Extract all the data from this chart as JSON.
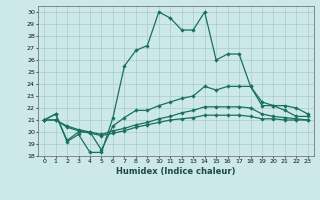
{
  "xlabel": "Humidex (Indice chaleur)",
  "x": [
    0,
    1,
    2,
    3,
    4,
    5,
    6,
    7,
    8,
    9,
    10,
    11,
    12,
    13,
    14,
    15,
    16,
    17,
    18,
    19,
    20,
    21,
    22,
    23
  ],
  "line1": [
    21.0,
    21.5,
    19.2,
    19.8,
    18.3,
    18.3,
    21.2,
    25.5,
    26.8,
    27.2,
    30.0,
    29.5,
    28.5,
    28.5,
    30.0,
    26.0,
    26.5,
    26.5,
    23.8,
    22.2,
    22.2,
    21.8,
    21.3,
    21.3
  ],
  "line2": [
    21.0,
    21.5,
    19.3,
    20.0,
    20.0,
    18.5,
    20.5,
    21.2,
    21.8,
    21.8,
    22.2,
    22.5,
    22.8,
    23.0,
    23.8,
    23.5,
    23.8,
    23.8,
    23.8,
    22.5,
    22.2,
    22.2,
    22.0,
    21.5
  ],
  "line3": [
    21.0,
    21.0,
    20.5,
    20.2,
    20.0,
    19.8,
    20.1,
    20.3,
    20.6,
    20.8,
    21.1,
    21.3,
    21.6,
    21.8,
    22.1,
    22.1,
    22.1,
    22.1,
    22.0,
    21.5,
    21.3,
    21.2,
    21.1,
    21.0
  ],
  "line4": [
    21.0,
    21.0,
    20.4,
    20.1,
    19.9,
    19.7,
    19.9,
    20.1,
    20.4,
    20.6,
    20.8,
    21.0,
    21.1,
    21.2,
    21.4,
    21.4,
    21.4,
    21.4,
    21.3,
    21.1,
    21.1,
    21.0,
    21.0,
    21.0
  ],
  "line_color": "#1a7060",
  "bg_color": "#cce8e8",
  "grid_color": "#aacccc",
  "ylim": [
    18,
    30.5
  ],
  "yticks": [
    18,
    19,
    20,
    21,
    22,
    23,
    24,
    25,
    26,
    27,
    28,
    29,
    30
  ],
  "xlim": [
    -0.5,
    23.5
  ],
  "xticks": [
    0,
    1,
    2,
    3,
    4,
    5,
    6,
    7,
    8,
    9,
    10,
    11,
    12,
    13,
    14,
    15,
    16,
    17,
    18,
    19,
    20,
    21,
    22,
    23
  ]
}
